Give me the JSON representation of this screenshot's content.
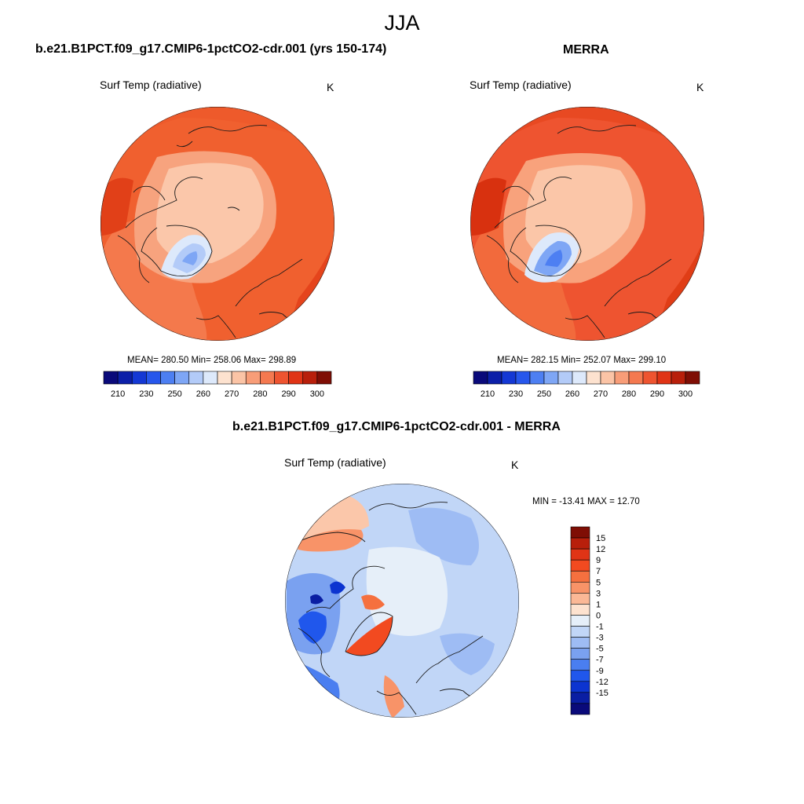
{
  "figure": {
    "title": "JJA"
  },
  "panels": [
    {
      "title": "b.e21.B1PCT.f09_g17.CMIP6-1pctCO2-cdr.001 (yrs 150-174)",
      "variable": "Surf Temp (radiative)",
      "units": "K",
      "stats": "MEAN= 280.50  Min= 258.06  Max= 298.89",
      "mean": 280.5,
      "min": 258.06,
      "max": 298.89
    },
    {
      "title": "MERRA",
      "variable": "Surf Temp (radiative)",
      "units": "K",
      "stats": "MEAN= 282.15  Min= 252.07  Max= 299.10",
      "mean": 282.15,
      "min": 252.07,
      "max": 299.1
    },
    {
      "title": "b.e21.B1PCT.f09_g17.CMIP6-1pctCO2-cdr.001 - MERRA",
      "variable": "Surf Temp (radiative)",
      "units": "K",
      "stats": "MIN = -13.41 MAX =  12.70",
      "min": -13.41,
      "max": 12.7
    }
  ],
  "colorbar_abs": {
    "orientation": "horizontal",
    "tick_labels": [
      "210",
      "230",
      "250",
      "260",
      "270",
      "280",
      "290",
      "300"
    ],
    "colors": [
      "#0a0a7a",
      "#0c1fa8",
      "#1438d4",
      "#2757ec",
      "#4d7ff2",
      "#7ea6f5",
      "#b3cbf8",
      "#dde9fb",
      "#fde2cf",
      "#fbc4a6",
      "#f89d78",
      "#f47950",
      "#ee5430",
      "#e03416",
      "#b81f0b",
      "#7f0e05"
    ]
  },
  "colorbar_diff": {
    "orientation": "vertical",
    "tick_labels": [
      "15",
      "12",
      "9",
      "7",
      "5",
      "3",
      "1",
      "0",
      "-1",
      "-3",
      "-5",
      "-7",
      "-9",
      "-12",
      "-15"
    ],
    "colors": [
      "#7f0e05",
      "#b81f0b",
      "#e03416",
      "#f24a20",
      "#f5703f",
      "#f89368",
      "#fbb896",
      "#fde2cf",
      "#e6eff9",
      "#c1d6f7",
      "#9ebcf4",
      "#7aa1f0",
      "#4a7ef0",
      "#2057ec",
      "#0c34d0",
      "#0a1ea3",
      "#0a0a7a"
    ]
  }
}
